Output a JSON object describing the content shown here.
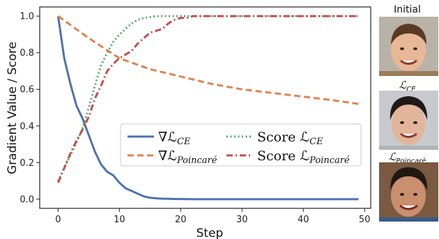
{
  "chart_data": {
    "type": "line",
    "xlabel": "Step",
    "ylabel": "Gradient Value / Score",
    "xlim": [
      -3,
      51
    ],
    "ylim": [
      -0.05,
      1.05
    ],
    "xticks": [
      0,
      10,
      20,
      30,
      40,
      50
    ],
    "yticks": [
      0.0,
      0.2,
      0.4,
      0.6,
      0.8,
      1.0
    ],
    "xtick_labels": [
      "0",
      "10",
      "20",
      "30",
      "40",
      "50"
    ],
    "ytick_labels": [
      "0.0",
      "0.2",
      "0.4",
      "0.6",
      "0.8",
      "1.0"
    ],
    "grid": false,
    "legend_position": "lower-right",
    "series": [
      {
        "name": "∇ℒ CE",
        "legend_main": "∇ℒ",
        "legend_sub": "CE",
        "color": "#4c72b0",
        "style": "solid",
        "x": [
          0,
          1,
          2,
          3,
          4,
          5,
          6,
          7,
          8,
          9,
          10,
          11,
          12,
          13,
          14,
          15,
          16,
          17,
          18,
          19,
          20,
          22,
          25,
          30,
          35,
          40,
          45,
          49
        ],
        "values": [
          1.0,
          0.77,
          0.63,
          0.51,
          0.44,
          0.35,
          0.26,
          0.19,
          0.15,
          0.13,
          0.09,
          0.06,
          0.045,
          0.03,
          0.015,
          0.008,
          0.005,
          0.003,
          0.002,
          0.001,
          0.001,
          0.0,
          0.0,
          0.0,
          0.0,
          0.0,
          0.0,
          0.0
        ]
      },
      {
        "name": "∇ℒ Poincaré",
        "legend_main": "∇ℒ",
        "legend_sub": "Poincaré",
        "color": "#dd8452",
        "style": "dashed",
        "x": [
          0,
          5,
          10,
          15,
          20,
          25,
          30,
          35,
          40,
          45,
          49
        ],
        "values": [
          1.0,
          0.88,
          0.77,
          0.71,
          0.67,
          0.63,
          0.6,
          0.58,
          0.56,
          0.54,
          0.52
        ]
      },
      {
        "name": "Score ℒ CE",
        "legend_main": "Score ℒ",
        "legend_sub": "CE",
        "color": "#55a868",
        "style": "dotted",
        "x": [
          0,
          1,
          2,
          3,
          4,
          5,
          6,
          7,
          8,
          9,
          10,
          11,
          12,
          13,
          14,
          15,
          16,
          17,
          18,
          20,
          25,
          30,
          40,
          49
        ],
        "values": [
          0.1,
          0.17,
          0.24,
          0.31,
          0.39,
          0.5,
          0.62,
          0.73,
          0.8,
          0.86,
          0.9,
          0.93,
          0.96,
          0.98,
          0.99,
          0.995,
          1.0,
          1.0,
          1.0,
          1.0,
          1.0,
          1.0,
          1.0,
          1.0
        ]
      },
      {
        "name": "Score ℒ Poincaré",
        "legend_main": "Score ℒ",
        "legend_sub": "Poincaré",
        "color": "#c44e52",
        "style": "dashdot",
        "x": [
          0,
          1,
          2,
          3,
          4,
          5,
          6,
          7,
          8,
          9,
          10,
          11,
          12,
          13,
          14,
          15,
          16,
          17,
          18,
          19,
          20,
          21,
          22,
          23,
          25,
          30,
          40,
          49
        ],
        "values": [
          0.09,
          0.17,
          0.25,
          0.32,
          0.38,
          0.45,
          0.55,
          0.62,
          0.7,
          0.74,
          0.77,
          0.79,
          0.81,
          0.85,
          0.88,
          0.91,
          0.92,
          0.93,
          0.96,
          0.98,
          0.99,
          0.99,
          1.0,
          1.0,
          1.0,
          1.0,
          1.0,
          1.0
        ]
      }
    ]
  },
  "side_panel": {
    "initial_label": "Initial",
    "ce_label_main": "ℒ",
    "ce_label_sub": "CE",
    "poincare_label_main": "ℒ",
    "poincare_label_sub": "Poincarè"
  }
}
